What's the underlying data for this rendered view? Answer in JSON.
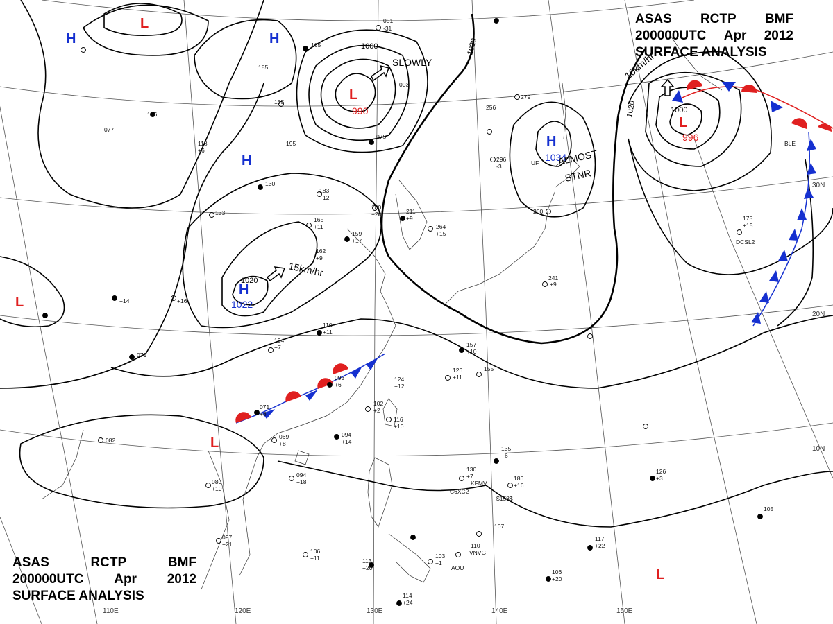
{
  "header": {
    "line1": [
      "ASAS",
      "RCTP",
      "BMF"
    ],
    "line2": [
      "200000UTC",
      "Apr",
      "2012"
    ],
    "line3": "SURFACE ANALYSIS"
  },
  "colors": {
    "high": "#1530d0",
    "low": "#e02020",
    "cold_front": "#1530d0",
    "warm_front": "#e02020",
    "isobar": "#000000",
    "graticule": "#555555"
  },
  "longitude_labels": [
    "110E",
    "120E",
    "130E",
    "140E",
    "150E"
  ],
  "latitude_labels": [
    "30N",
    "20N",
    "10N"
  ],
  "pressure_systems": {
    "low_north": {
      "symbol": "L",
      "pressure": "990"
    },
    "low_east": {
      "symbol": "L",
      "pressure": "996"
    },
    "high_east": {
      "symbol": "H",
      "pressure": "1034"
    },
    "high_west": {
      "symbol": "H",
      "pressure": "1022"
    },
    "low_top": {
      "symbol": "L"
    },
    "low_left": {
      "symbol": "L"
    },
    "low_south": {
      "symbol": "L"
    },
    "low_far_se": {
      "symbol": "L"
    },
    "high_nw": {
      "symbol": "H"
    },
    "high_n": {
      "symbol": "H"
    },
    "high_mid": {
      "symbol": "H"
    }
  },
  "isobar_labels": {
    "north_1000": "1000",
    "northeast_1020": "1020",
    "east_1020": "1020",
    "east_1000": "1000",
    "west_1020": "1020"
  },
  "movement_notes": {
    "slowly": "SLOWLY",
    "speed_west": "15km/hr",
    "speed_east": "10km/hr",
    "almost": "ALMOST",
    "stnr": "STNR"
  },
  "station_values": {
    "s1": "051",
    "s2": "-31",
    "s3": "003",
    "s4": "075",
    "s5": "165",
    "s6": "+11",
    "s7": "159",
    "s8": "+17",
    "s9": "183",
    "s10": "+12",
    "s11": "180",
    "s12": "+20",
    "s13": "211",
    "s14": "+9",
    "s15": "264",
    "s16": "+15",
    "s17": "260",
    "s18": "241",
    "s19": "+9",
    "s20": "279",
    "s21": "256",
    "s22": "296",
    "s23": "-3",
    "s24": "175",
    "s25": "+15",
    "s26": "110",
    "s27": "+11",
    "s28": "124",
    "s29": "+7",
    "s30": "157",
    "s31": "+10",
    "s32": "126",
    "s33": "+11",
    "s34": "155",
    "s35": "093",
    "s36": "+6",
    "s37": "071",
    "s38": "+8",
    "s39": "102",
    "s40": "+2",
    "s41": "116",
    "s42": "+10",
    "s43": "094",
    "s44": "+14",
    "s45": "094",
    "s46": "+18",
    "s47": "080",
    "s48": "+10",
    "s49": "097",
    "s50": "+21",
    "s51": "106",
    "s52": "+11",
    "s53": "113",
    "s54": "+20",
    "s55": "114",
    "s56": "+24",
    "s57": "135",
    "s58": "+6",
    "s59": "186",
    "s60": "+16",
    "s61": "130",
    "s62": "+7",
    "s63": "107",
    "s64": "110",
    "s65": "103",
    "s66": "+1",
    "s67": "126",
    "s68": "+3",
    "s69": "105",
    "s70": "106",
    "s71": "+20",
    "s72": "117",
    "s73": "+22",
    "s74": "082",
    "s75": "071",
    "s76": "136",
    "s77": "077",
    "s78": "118",
    "s79": "+6",
    "s80": "130",
    "s81": "133",
    "s82": "162",
    "s83": "+9",
    "s84": "+16",
    "s85": "+14",
    "s86": "185",
    "s87": "195",
    "s88": "165",
    "s89": "165",
    "s90": "124",
    "s91": "+12",
    "s92": "069",
    "s93": "+8"
  },
  "station_ids": {
    "kfmv": "KFMV",
    "c6xc2": "C6XC2",
    "s158": "$158$",
    "vnvg": "VNVG",
    "dcsl2": "DCSL2",
    "uf": "UF",
    "aou": "AOU",
    "ble": "BLE"
  }
}
